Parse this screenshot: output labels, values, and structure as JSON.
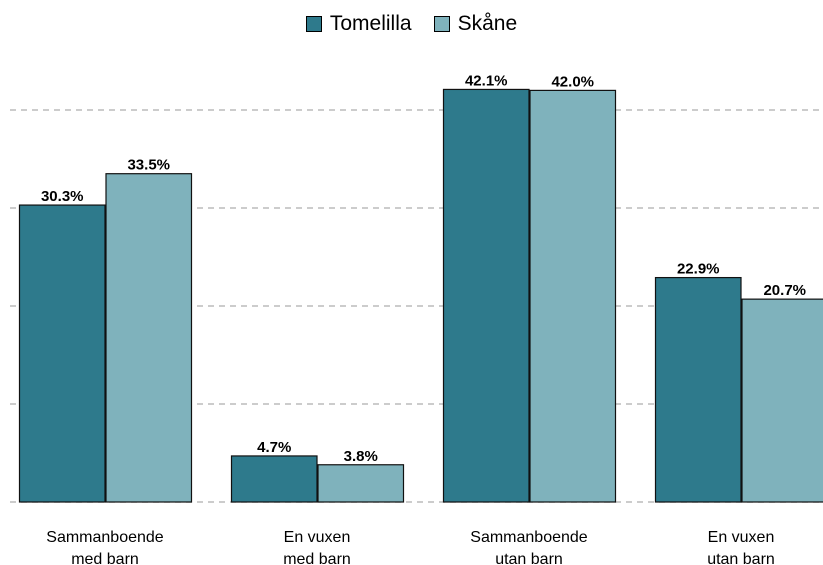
{
  "chart_data": {
    "type": "bar",
    "categories": [
      "Sammanboende\nmed barn",
      "En vuxen\nmed barn",
      "Sammanboende\nutan barn",
      "En vuxen\nutan barn"
    ],
    "series": [
      {
        "name": "Tomelilla",
        "color": "#2e7a8c",
        "values": [
          30.3,
          4.7,
          42.1,
          22.9
        ],
        "value_labels": [
          "30.3%",
          "4.7%",
          "42.1%",
          "22.9%"
        ]
      },
      {
        "name": "Skåne",
        "color": "#7fb2bc",
        "values": [
          33.5,
          3.8,
          42.0,
          20.7
        ],
        "value_labels": [
          "33.5%",
          "3.8%",
          "42.0%",
          "20.7%"
        ]
      }
    ],
    "ylim": [
      0,
      45
    ],
    "yticks": [
      0,
      10,
      20,
      30,
      40
    ],
    "grid": true,
    "legend": "top"
  }
}
